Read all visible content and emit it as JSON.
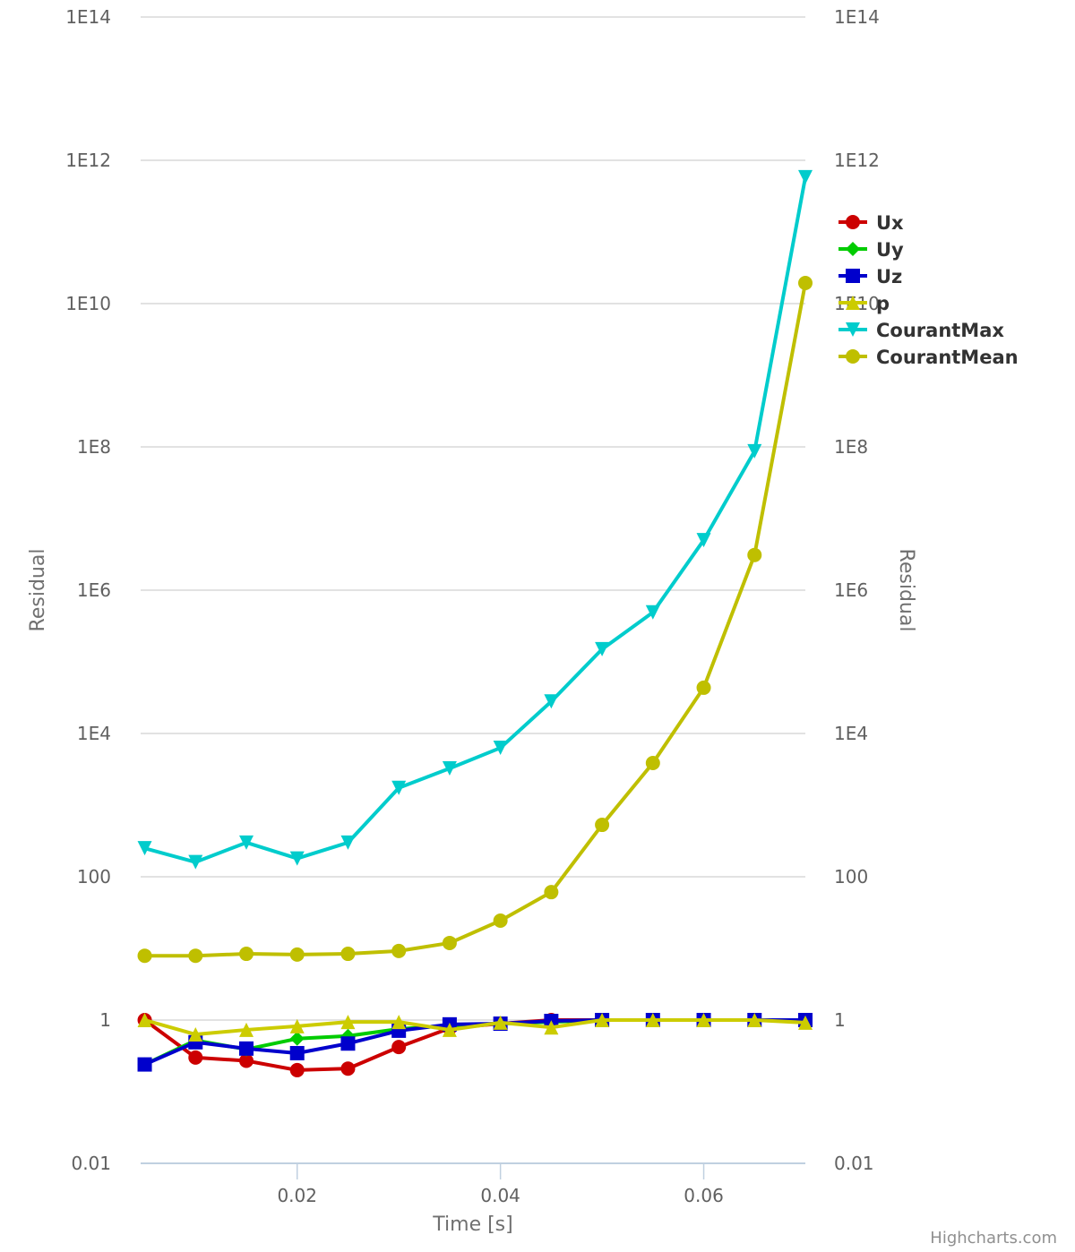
{
  "chart_data": {
    "type": "line",
    "title": "",
    "xlabel": "Time [s]",
    "ylabel": "Residual",
    "ylabel_right": "Residual",
    "yscale": "log",
    "xlim": [
      0.0046,
      0.07
    ],
    "ylim": [
      0.01,
      100000000000000.0
    ],
    "x_ticks": [
      {
        "value": 0.02,
        "label": "0.02"
      },
      {
        "value": 0.04,
        "label": "0.04"
      },
      {
        "value": 0.06,
        "label": "0.06"
      }
    ],
    "y_ticks": [
      {
        "value": 0.01,
        "label": "0.01"
      },
      {
        "value": 1,
        "label": "1"
      },
      {
        "value": 100,
        "label": "100"
      },
      {
        "value": 10000,
        "label": "1E4"
      },
      {
        "value": 1000000,
        "label": "1E6"
      },
      {
        "value": 100000000,
        "label": "1E8"
      },
      {
        "value": 10000000000,
        "label": "1E10"
      },
      {
        "value": 1000000000000,
        "label": "1E12"
      },
      {
        "value": 100000000000000,
        "label": "1E14"
      }
    ],
    "grid": true,
    "legend_position": "right",
    "x": [
      0.005,
      0.01,
      0.015,
      0.02,
      0.025,
      0.03,
      0.035,
      0.04,
      0.045,
      0.05,
      0.055,
      0.06,
      0.065,
      0.07
    ],
    "series": [
      {
        "name": "Ux",
        "color": "#cc0000",
        "marker": "circle",
        "values": [
          1.0,
          0.3,
          0.27,
          0.2,
          0.21,
          0.42,
          0.77,
          0.89,
          1.0,
          1.0,
          1.0,
          1.0,
          1.0,
          1.0
        ]
      },
      {
        "name": "Uy",
        "color": "#00cc00",
        "marker": "diamond",
        "values": [
          0.24,
          0.52,
          0.39,
          0.55,
          0.6,
          0.75,
          0.84,
          0.89,
          0.94,
          1.0,
          1.0,
          1.0,
          1.0,
          1.0
        ]
      },
      {
        "name": "Uz",
        "color": "#0000cc",
        "marker": "square",
        "values": [
          0.24,
          0.49,
          0.4,
          0.345,
          0.47,
          0.71,
          0.87,
          0.89,
          0.97,
          1.0,
          1.0,
          1.0,
          1.0,
          1.0
        ]
      },
      {
        "name": "p",
        "color": "#cccc00",
        "marker": "triangle",
        "values": [
          1.0,
          0.63,
          0.73,
          0.82,
          0.94,
          0.94,
          0.73,
          0.92,
          0.79,
          1.0,
          1.0,
          1.0,
          1.0,
          0.92
        ]
      },
      {
        "name": "CourantMax",
        "color": "#00cccc",
        "marker": "triangle-down",
        "values": [
          250,
          160,
          300,
          180,
          300,
          1740,
          3250,
          6300,
          28000,
          150000,
          490000,
          5000000,
          87000000,
          580000000000
        ]
      },
      {
        "name": "CourantMean",
        "color": "#bfbf00",
        "marker": "circle",
        "values": [
          7.9,
          7.9,
          8.4,
          8.2,
          8.4,
          9.2,
          11.9,
          24.4,
          61,
          530,
          3870,
          43500,
          3100000,
          19400000000
        ]
      }
    ]
  },
  "credits": "Highcharts.com"
}
